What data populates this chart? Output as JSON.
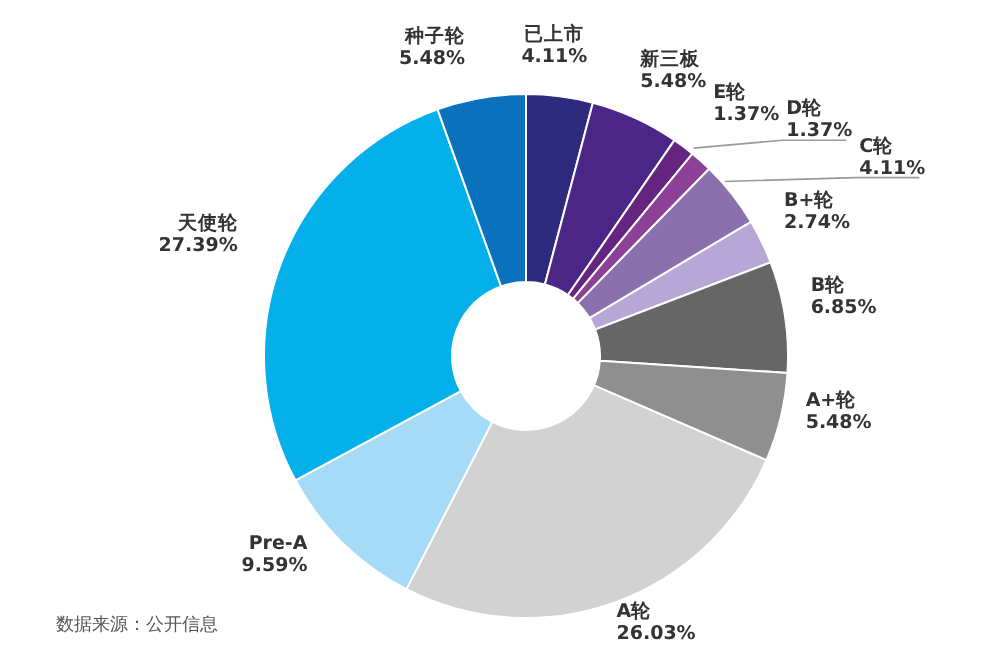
{
  "chart_data": {
    "type": "donut",
    "categories": [
      "已上市",
      "新三板",
      "E轮",
      "D轮",
      "C轮",
      "B+轮",
      "B轮",
      "A+轮",
      "A轮",
      "Pre-A",
      "天使轮",
      "种子轮"
    ],
    "values": [
      4.11,
      5.48,
      1.37,
      1.37,
      4.11,
      2.74,
      6.85,
      5.48,
      26.03,
      9.59,
      27.39,
      5.48
    ],
    "value_labels": [
      "4.11%",
      "5.48%",
      "1.37%",
      "1.37%",
      "4.11%",
      "2.74%",
      "6.85%",
      "5.48%",
      "26.03%",
      "9.59%",
      "27.39%",
      "5.48%"
    ],
    "colors": [
      "#2e2a7e",
      "#4b2687",
      "#65247f",
      "#8c4196",
      "#8a70ad",
      "#b7a7d6",
      "#666666",
      "#8f8f8f",
      "#d2d2d2",
      "#a6dbf7",
      "#04b0ea",
      "#0a71bd"
    ],
    "legend": false,
    "annotations": [
      "数据来源：公开信息"
    ]
  }
}
